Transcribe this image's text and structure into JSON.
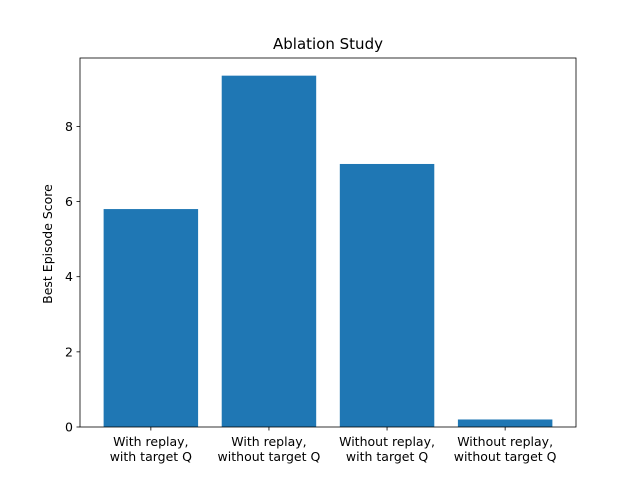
{
  "chart_data": {
    "type": "bar",
    "title": "Ablation Study",
    "xlabel": "",
    "ylabel": "Best Episode Score",
    "categories": [
      [
        "With replay,",
        "with target Q"
      ],
      [
        "With replay,",
        "without target Q"
      ],
      [
        "Without replay,",
        "with target Q"
      ],
      [
        "Without replay,",
        "without target Q"
      ]
    ],
    "values": [
      5.8,
      9.35,
      7.0,
      0.2
    ],
    "ylim": [
      0,
      9.82
    ],
    "yticks": [
      0,
      2,
      4,
      6,
      8
    ],
    "grid": false,
    "bar_color": "#1f77b4"
  }
}
